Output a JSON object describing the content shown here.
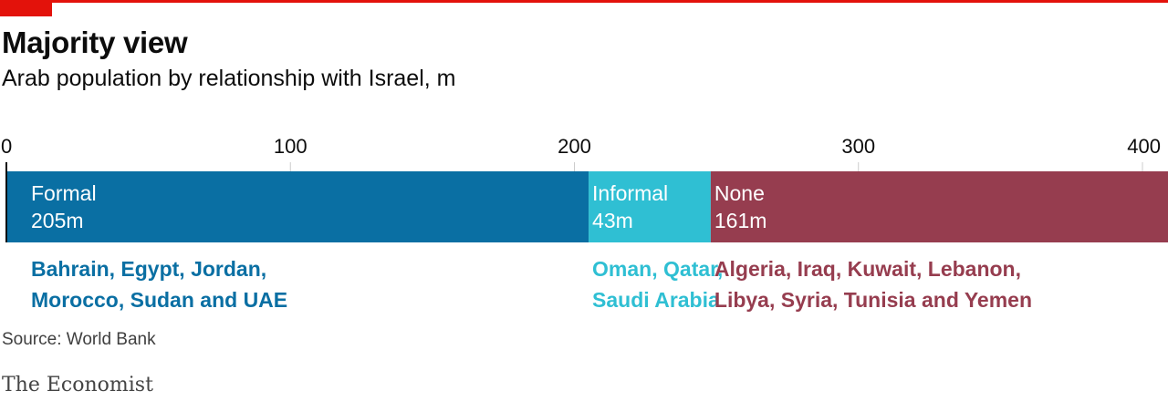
{
  "header": {
    "title": "Majority view",
    "subtitle": "Arab population by relationship with Israel, m"
  },
  "footer": {
    "source": "Source: World Bank",
    "brand": "The Economist"
  },
  "colors": {
    "accent_red": "#e3120b",
    "formal": "#0a6fa3",
    "informal": "#2fbfd3",
    "none": "#963d4f",
    "gridline": "#cccccc"
  },
  "chart_data": {
    "type": "bar",
    "orientation": "horizontal-stacked",
    "title": "Majority view",
    "subtitle": "Arab population by relationship with Israel, m",
    "xlim": [
      0,
      409
    ],
    "xticks": [
      0,
      100,
      200,
      300,
      400
    ],
    "grid": true,
    "series": [
      {
        "name": "Formal",
        "value": 205,
        "value_label": "205m",
        "countries_lines": [
          "Bahrain, Egypt, Jordan,",
          "Morocco, Sudan and UAE"
        ],
        "color": "#0a6fa3"
      },
      {
        "name": "Informal",
        "value": 43,
        "value_label": "43m",
        "countries_lines": [
          "Oman, Qatar,",
          "Saudi Arabia"
        ],
        "color": "#2fbfd3"
      },
      {
        "name": "None",
        "value": 161,
        "value_label": "161m",
        "countries_lines": [
          "Algeria, Iraq, Kuwait, Lebanon,",
          "Libya, Syria, Tunisia and Yemen"
        ],
        "color": "#963d4f"
      }
    ]
  }
}
